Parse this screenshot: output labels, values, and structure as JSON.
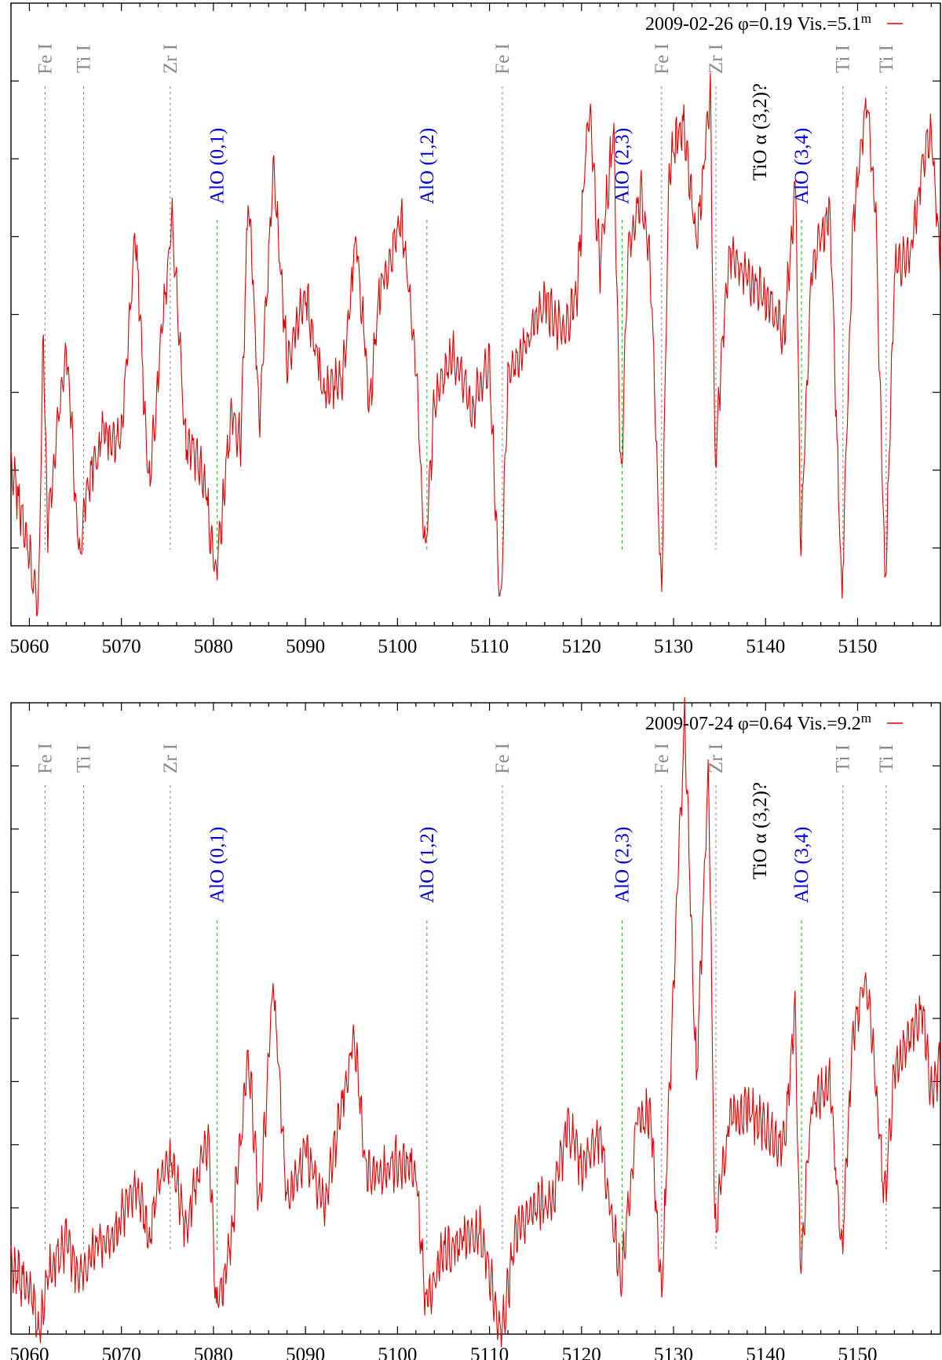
{
  "chart_data": [
    {
      "type": "line",
      "panel": "top",
      "legend": {
        "date": "2009-02-26",
        "phase": "φ=0.19",
        "vis": "Vis.=5.1",
        "sup": "m"
      },
      "legend_position": "top-right",
      "xlabel": "",
      "ylabel": "",
      "xlim": [
        5058,
        5159
      ],
      "ylim": [
        0,
        7.5
      ],
      "x_ticks": [
        5060,
        5070,
        5080,
        5090,
        5100,
        5110,
        5120,
        5130,
        5140,
        5150
      ],
      "y_tick_count": 7,
      "series": [
        {
          "name": "2009-02-26 φ=0.19 Vis.=5.1m",
          "color": "#e00000",
          "anchors": [
            [
              5058,
              2.0
            ],
            [
              5060,
              0.8
            ],
            [
              5061,
              0.2
            ],
            [
              5061.5,
              3.6
            ],
            [
              5062,
              1.2
            ],
            [
              5064,
              3.4
            ],
            [
              5065.5,
              0.7
            ],
            [
              5066,
              1.5
            ],
            [
              5068,
              2.4
            ],
            [
              5070,
              2.2
            ],
            [
              5071.5,
              4.8
            ],
            [
              5073,
              1.6
            ],
            [
              5074,
              3.0
            ],
            [
              5075.5,
              4.9
            ],
            [
              5077,
              2.2
            ],
            [
              5079,
              1.8
            ],
            [
              5080.2,
              0.6
            ],
            [
              5081,
              1.4
            ],
            [
              5082,
              2.6
            ],
            [
              5083,
              2.2
            ],
            [
              5083.8,
              5.3
            ],
            [
              5085,
              2.4
            ],
            [
              5086.5,
              5.5
            ],
            [
              5088,
              3.2
            ],
            [
              5090,
              4.0
            ],
            [
              5092,
              2.8
            ],
            [
              5094,
              3.0
            ],
            [
              5095.5,
              4.7
            ],
            [
              5097,
              2.6
            ],
            [
              5098,
              4.0
            ],
            [
              5100.5,
              4.9
            ],
            [
              5102,
              3.2
            ],
            [
              5103,
              0.8
            ],
            [
              5104,
              2.7
            ],
            [
              5106,
              3.3
            ],
            [
              5108,
              2.6
            ],
            [
              5110,
              3.2
            ],
            [
              5111.2,
              0.1
            ],
            [
              5112,
              3.0
            ],
            [
              5114,
              3.4
            ],
            [
              5116,
              3.9
            ],
            [
              5118,
              3.5
            ],
            [
              5119.5,
              4.0
            ],
            [
              5120.8,
              6.3
            ],
            [
              5122,
              4.3
            ],
            [
              5123.5,
              6.0
            ],
            [
              5124.3,
              1.6
            ],
            [
              5125,
              4.5
            ],
            [
              5126.5,
              5.2
            ],
            [
              5127.5,
              4.3
            ],
            [
              5128.7,
              0.3
            ],
            [
              5129.5,
              5.5
            ],
            [
              5131,
              6.1
            ],
            [
              5132.5,
              4.6
            ],
            [
              5134,
              6.4
            ],
            [
              5134.5,
              2.0
            ],
            [
              5136,
              4.5
            ],
            [
              5138,
              4.2
            ],
            [
              5140,
              4.0
            ],
            [
              5142,
              3.5
            ],
            [
              5143.3,
              5.4
            ],
            [
              5143.8,
              0.9
            ],
            [
              5145,
              4.3
            ],
            [
              5147,
              5.0
            ],
            [
              5148.3,
              0.3
            ],
            [
              5149.5,
              4.9
            ],
            [
              5151,
              6.4
            ],
            [
              5152,
              4.8
            ],
            [
              5153,
              0.4
            ],
            [
              5154,
              4.3
            ],
            [
              5156,
              4.6
            ],
            [
              5157,
              5.6
            ],
            [
              5158,
              6.0
            ],
            [
              5159,
              4.3
            ]
          ]
        }
      ]
    },
    {
      "type": "line",
      "panel": "bottom",
      "legend": {
        "date": "2009-07-24",
        "phase": "φ=0.64",
        "vis": "Vis.=9.2",
        "sup": "m"
      },
      "legend_position": "top-right",
      "xlabel": "",
      "ylabel": "",
      "xlim": [
        5058,
        5159
      ],
      "ylim": [
        0,
        9.5
      ],
      "x_ticks": [
        5060,
        5070,
        5080,
        5090,
        5100,
        5110,
        5120,
        5130,
        5140,
        5150
      ],
      "y_tick_count": 9,
      "series": [
        {
          "name": "2009-07-24 φ=0.64 Vis.=9.2m",
          "color": "#e00000",
          "anchors": [
            [
              5058,
              1.0
            ],
            [
              5060,
              0.7
            ],
            [
              5061,
              0.05
            ],
            [
              5062,
              0.9
            ],
            [
              5064,
              1.4
            ],
            [
              5065.5,
              0.8
            ],
            [
              5067,
              1.3
            ],
            [
              5069,
              1.4
            ],
            [
              5071.5,
              2.3
            ],
            [
              5073,
              1.4
            ],
            [
              5074,
              2.2
            ],
            [
              5075.5,
              2.6
            ],
            [
              5077,
              1.6
            ],
            [
              5079.5,
              3.0
            ],
            [
              5080.3,
              0.3
            ],
            [
              5082,
              1.5
            ],
            [
              5083.8,
              4.2
            ],
            [
              5085,
              1.8
            ],
            [
              5086.5,
              5.3
            ],
            [
              5088,
              1.9
            ],
            [
              5090,
              2.8
            ],
            [
              5092,
              1.9
            ],
            [
              5095.3,
              4.5
            ],
            [
              5096.5,
              2.5
            ],
            [
              5098,
              2.4
            ],
            [
              5100,
              2.6
            ],
            [
              5102,
              2.5
            ],
            [
              5103,
              0.5
            ],
            [
              5105,
              1.2
            ],
            [
              5107,
              1.4
            ],
            [
              5109,
              1.5
            ],
            [
              5111.3,
              0.0
            ],
            [
              5113,
              1.6
            ],
            [
              5115,
              1.9
            ],
            [
              5117,
              2.0
            ],
            [
              5118.5,
              3.2
            ],
            [
              5120,
              2.5
            ],
            [
              5122,
              3.0
            ],
            [
              5124.3,
              0.8
            ],
            [
              5126,
              3.3
            ],
            [
              5127.5,
              3.3
            ],
            [
              5128.7,
              0.5
            ],
            [
              5129.5,
              3.5
            ],
            [
              5131.2,
              9.3
            ],
            [
              5132.5,
              3.8
            ],
            [
              5133.8,
              8.6
            ],
            [
              5134.5,
              1.5
            ],
            [
              5136,
              3.2
            ],
            [
              5138,
              3.4
            ],
            [
              5140,
              3.1
            ],
            [
              5142,
              2.8
            ],
            [
              5143.2,
              4.9
            ],
            [
              5143.8,
              1.0
            ],
            [
              5145,
              3.4
            ],
            [
              5147,
              3.8
            ],
            [
              5148.3,
              1.2
            ],
            [
              5149.5,
              4.6
            ],
            [
              5151,
              5.4
            ],
            [
              5152,
              3.6
            ],
            [
              5153,
              2.0
            ],
            [
              5154,
              4.0
            ],
            [
              5156,
              4.6
            ],
            [
              5157,
              4.9
            ],
            [
              5158,
              3.6
            ],
            [
              5159,
              4.1
            ]
          ]
        }
      ]
    }
  ],
  "line_markers": [
    {
      "label": "Fe I",
      "wavelength": 5061.7,
      "group": "atomic"
    },
    {
      "label": "Ti I",
      "wavelength": 5065.9,
      "group": "atomic"
    },
    {
      "label": "Zr I",
      "wavelength": 5075.3,
      "group": "atomic"
    },
    {
      "label": "AlO (0,1)",
      "wavelength": 5080.4,
      "group": "AlO"
    },
    {
      "label": "AlO (1,2)",
      "wavelength": 5103.2,
      "group": "AlO"
    },
    {
      "label": "Fe I",
      "wavelength": 5111.4,
      "group": "atomic"
    },
    {
      "label": "AlO (2,3)",
      "wavelength": 5124.4,
      "group": "AlO"
    },
    {
      "label": "Fe I",
      "wavelength": 5128.7,
      "group": "atomic"
    },
    {
      "label": "Zr I",
      "wavelength": 5134.6,
      "group": "atomic"
    },
    {
      "label": "TiO α (3,2)?",
      "wavelength": 5139.4,
      "group": "TiO"
    },
    {
      "label": "AlO (3,4)",
      "wavelength": 5143.9,
      "group": "AlO"
    },
    {
      "label": "Ti I",
      "wavelength": 5148.4,
      "group": "atomic"
    },
    {
      "label": "Ti I",
      "wavelength": 5153.1,
      "group": "atomic"
    }
  ]
}
